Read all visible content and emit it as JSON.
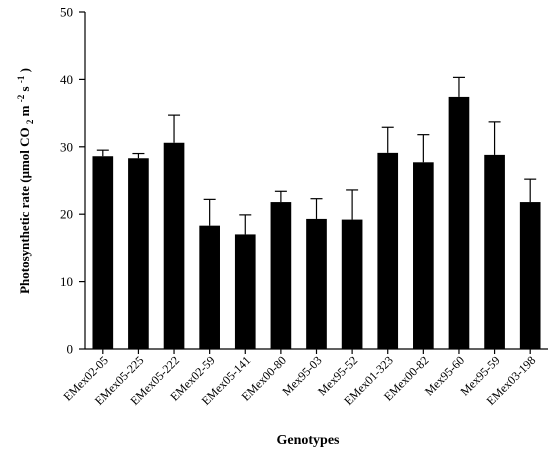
{
  "chart_data": {
    "type": "bar",
    "title": "",
    "xlabel": "Genotypes",
    "ylabel": {
      "main": "Photosynthetic rate (μmol CO",
      "sub2": "2",
      "m": " m",
      "sup_minus2": "-2",
      "s": " s",
      "sup_minus1": "-1",
      "close": ")"
    },
    "ylim": [
      0,
      50
    ],
    "yticks": [
      0,
      10,
      20,
      30,
      40,
      50
    ],
    "grid": false,
    "error_bars": "upper",
    "bar_color": "#000000",
    "categories": [
      "EMex02-05",
      "EMex05-225",
      "EMex05-222",
      "EMex02-59",
      "EMex05-141",
      "EMex00-80",
      "Mex95-03",
      "Mex95-52",
      "EMex01-323",
      "EMex00-82",
      "Mex95-60",
      "Mex95-59",
      "EMex03-198"
    ],
    "values": [
      28.6,
      28.3,
      30.6,
      18.3,
      17.0,
      21.8,
      19.3,
      19.2,
      29.1,
      27.7,
      37.4,
      28.8,
      21.8
    ],
    "errors": [
      0.9,
      0.7,
      4.1,
      3.9,
      2.9,
      1.6,
      3.0,
      4.4,
      3.8,
      4.1,
      2.9,
      4.9,
      3.4
    ]
  }
}
